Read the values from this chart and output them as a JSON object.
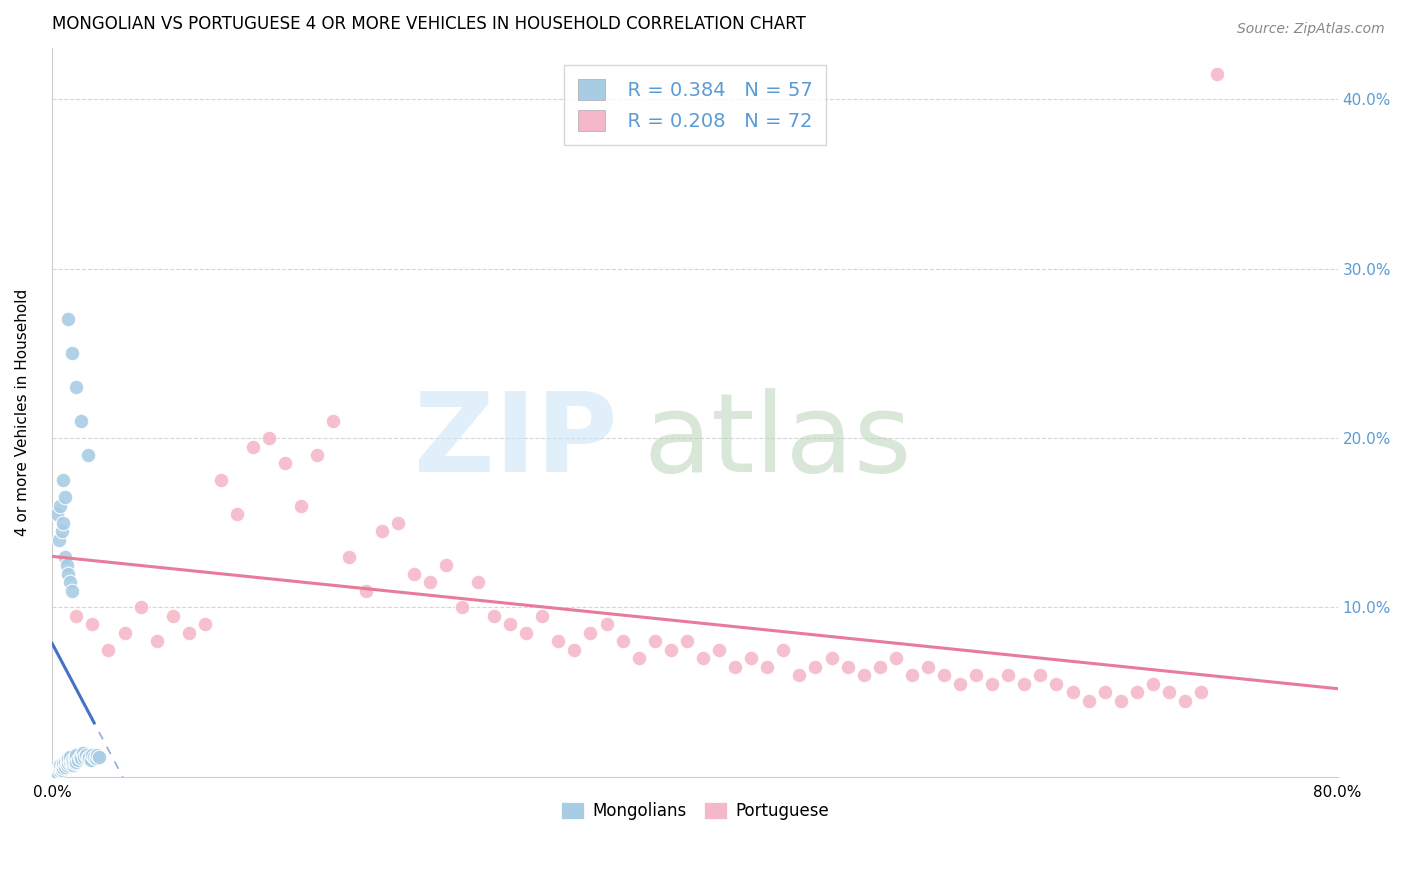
{
  "title": "MONGOLIAN VS PORTUGUESE 4 OR MORE VEHICLES IN HOUSEHOLD CORRELATION CHART",
  "source": "Source: ZipAtlas.com",
  "ylabel": "4 or more Vehicles in Household",
  "mongolian_R": 0.384,
  "mongolian_N": 57,
  "portuguese_R": 0.208,
  "portuguese_N": 72,
  "xlim": [
    0.0,
    0.8
  ],
  "ylim": [
    0.0,
    0.43
  ],
  "xtick_labels": [
    "0.0%",
    "",
    "",
    "",
    "",
    "",
    "",
    "",
    "80.0%"
  ],
  "xtick_values": [
    0.0,
    0.1,
    0.2,
    0.3,
    0.4,
    0.5,
    0.6,
    0.7,
    0.8
  ],
  "ytick_labels_right": [
    "10.0%",
    "20.0%",
    "30.0%",
    "40.0%"
  ],
  "ytick_values": [
    0.1,
    0.2,
    0.3,
    0.4
  ],
  "mongolian_color": "#a8cce4",
  "portuguese_color": "#f4b8c8",
  "mongolian_trendline_color": "#4472c4",
  "portuguese_trendline_color": "#e87a9a",
  "right_tick_color": "#5b9bd5",
  "background_color": "#ffffff",
  "grid_color": "#cccccc",
  "mongolian_x": [
    0.002,
    0.003,
    0.004,
    0.004,
    0.005,
    0.005,
    0.006,
    0.006,
    0.007,
    0.007,
    0.008,
    0.008,
    0.009,
    0.009,
    0.01,
    0.01,
    0.011,
    0.011,
    0.012,
    0.012,
    0.013,
    0.013,
    0.014,
    0.014,
    0.015,
    0.015,
    0.016,
    0.017,
    0.018,
    0.019,
    0.02,
    0.021,
    0.022,
    0.023,
    0.024,
    0.025,
    0.026,
    0.027,
    0.028,
    0.029,
    0.003,
    0.004,
    0.005,
    0.006,
    0.007,
    0.008,
    0.009,
    0.01,
    0.011,
    0.012,
    0.01,
    0.012,
    0.015,
    0.018,
    0.022,
    0.007,
    0.008
  ],
  "mongolian_y": [
    0.002,
    0.003,
    0.004,
    0.006,
    0.005,
    0.007,
    0.004,
    0.006,
    0.005,
    0.008,
    0.006,
    0.009,
    0.007,
    0.01,
    0.008,
    0.011,
    0.009,
    0.012,
    0.008,
    0.01,
    0.007,
    0.009,
    0.008,
    0.011,
    0.009,
    0.013,
    0.01,
    0.012,
    0.011,
    0.014,
    0.012,
    0.013,
    0.011,
    0.012,
    0.01,
    0.013,
    0.012,
    0.011,
    0.013,
    0.012,
    0.155,
    0.14,
    0.16,
    0.145,
    0.15,
    0.13,
    0.125,
    0.12,
    0.115,
    0.11,
    0.27,
    0.25,
    0.23,
    0.21,
    0.19,
    0.175,
    0.165
  ],
  "portuguese_x": [
    0.015,
    0.025,
    0.035,
    0.045,
    0.055,
    0.065,
    0.075,
    0.085,
    0.095,
    0.105,
    0.115,
    0.125,
    0.135,
    0.145,
    0.155,
    0.165,
    0.175,
    0.185,
    0.195,
    0.205,
    0.215,
    0.225,
    0.235,
    0.245,
    0.255,
    0.265,
    0.275,
    0.285,
    0.295,
    0.305,
    0.315,
    0.325,
    0.335,
    0.345,
    0.355,
    0.365,
    0.375,
    0.385,
    0.395,
    0.405,
    0.415,
    0.425,
    0.435,
    0.445,
    0.455,
    0.465,
    0.475,
    0.485,
    0.495,
    0.505,
    0.515,
    0.525,
    0.535,
    0.545,
    0.555,
    0.565,
    0.575,
    0.585,
    0.595,
    0.605,
    0.615,
    0.625,
    0.635,
    0.645,
    0.655,
    0.665,
    0.675,
    0.685,
    0.695,
    0.705,
    0.715,
    0.725
  ],
  "portuguese_y": [
    0.095,
    0.09,
    0.075,
    0.085,
    0.1,
    0.08,
    0.095,
    0.085,
    0.09,
    0.175,
    0.155,
    0.195,
    0.2,
    0.185,
    0.16,
    0.19,
    0.21,
    0.13,
    0.11,
    0.145,
    0.15,
    0.12,
    0.115,
    0.125,
    0.1,
    0.115,
    0.095,
    0.09,
    0.085,
    0.095,
    0.08,
    0.075,
    0.085,
    0.09,
    0.08,
    0.07,
    0.08,
    0.075,
    0.08,
    0.07,
    0.075,
    0.065,
    0.07,
    0.065,
    0.075,
    0.06,
    0.065,
    0.07,
    0.065,
    0.06,
    0.065,
    0.07,
    0.06,
    0.065,
    0.06,
    0.055,
    0.06,
    0.055,
    0.06,
    0.055,
    0.06,
    0.055,
    0.05,
    0.045,
    0.05,
    0.045,
    0.05,
    0.055,
    0.05,
    0.045,
    0.05,
    0.415
  ]
}
